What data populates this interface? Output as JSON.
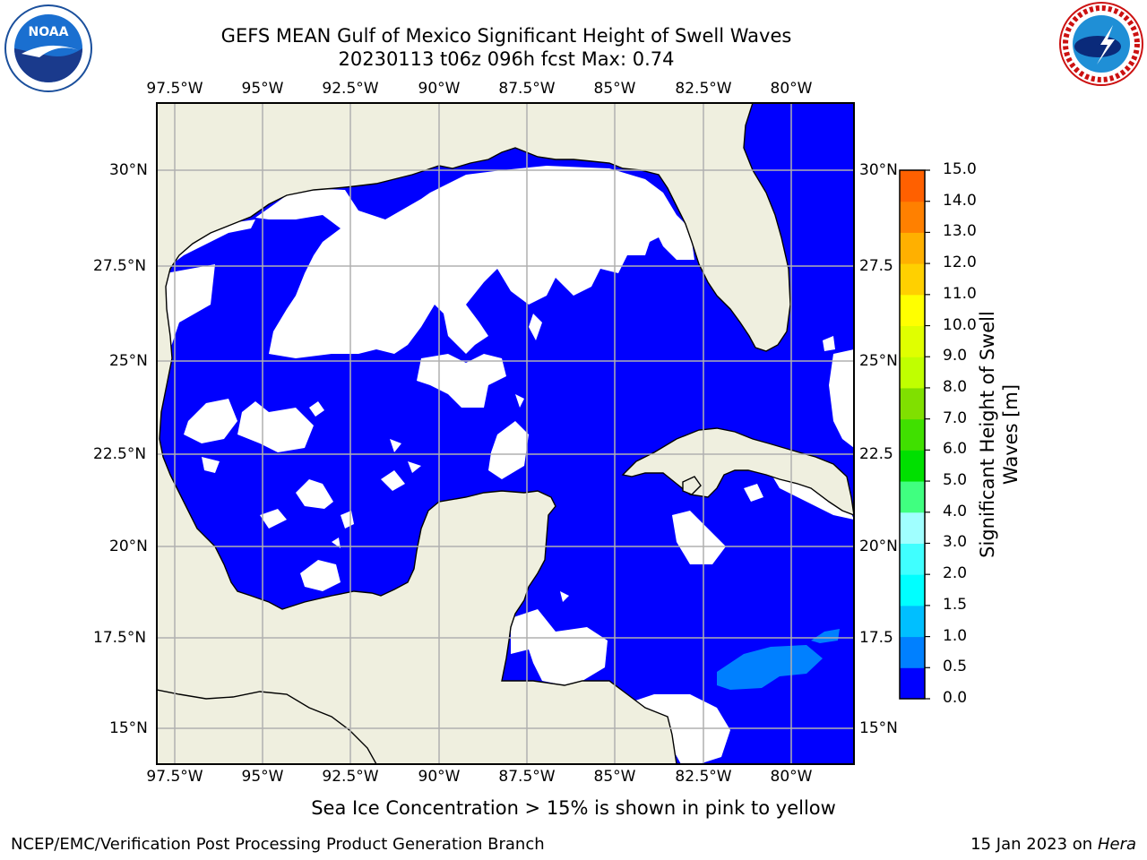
{
  "title": {
    "line1": "GEFS MEAN Gulf of Mexico Significant Height of Swell Waves",
    "line2": "20230113 t06z 096h fcst   Max: 0.74"
  },
  "axes": {
    "lon_labels": [
      "97.5°W",
      "95°W",
      "92.5°W",
      "90°W",
      "87.5°W",
      "85°W",
      "82.5°W",
      "80°W"
    ],
    "lat_labels": [
      "30°N",
      "27.5°N",
      "25°N",
      "22.5°N",
      "20°N",
      "17.5°N",
      "15°N"
    ],
    "lat_labels_right": [
      "30°N",
      "27.5",
      "25°N",
      "22.5",
      "20°N",
      "17.5",
      "15°N"
    ]
  },
  "colorbar": {
    "label": "Significant Height of Swell Waves [m]",
    "ticks": [
      "15.0",
      "14.0",
      "13.0",
      "12.0",
      "11.0",
      "10.0",
      "9.0",
      "8.0",
      "7.0",
      "6.0",
      "5.0",
      "4.0",
      "3.0",
      "2.0",
      "1.5",
      "1.0",
      "0.5",
      "0.0"
    ],
    "colors": [
      "#0000ff",
      "#0080ff",
      "#00bfff",
      "#00ffff",
      "#40ffff",
      "#a0ffff",
      "#40ff80",
      "#00e000",
      "#40e000",
      "#80e000",
      "#c0ff00",
      "#e0ff00",
      "#ffff00",
      "#ffd000",
      "#ffb000",
      "#ff8000",
      "#ff6000",
      "#ff3000",
      "#ff0000"
    ]
  },
  "colors": {
    "land": "#efefdf",
    "ocean": "#0000ff",
    "swell_0_5": "#0080ff",
    "no_data": "#ffffff",
    "grid": "#b0b0b0"
  },
  "note": "Sea Ice Concentration > 15% is shown in pink to yellow",
  "credit_left": "NCEP/EMC/Verification Post Processing Product Generation Branch",
  "credit_right_prefix": "15 Jan 2023 on ",
  "credit_right_host": "Hera",
  "logos": {
    "left": "noaa-logo",
    "right": "nws-logo"
  }
}
